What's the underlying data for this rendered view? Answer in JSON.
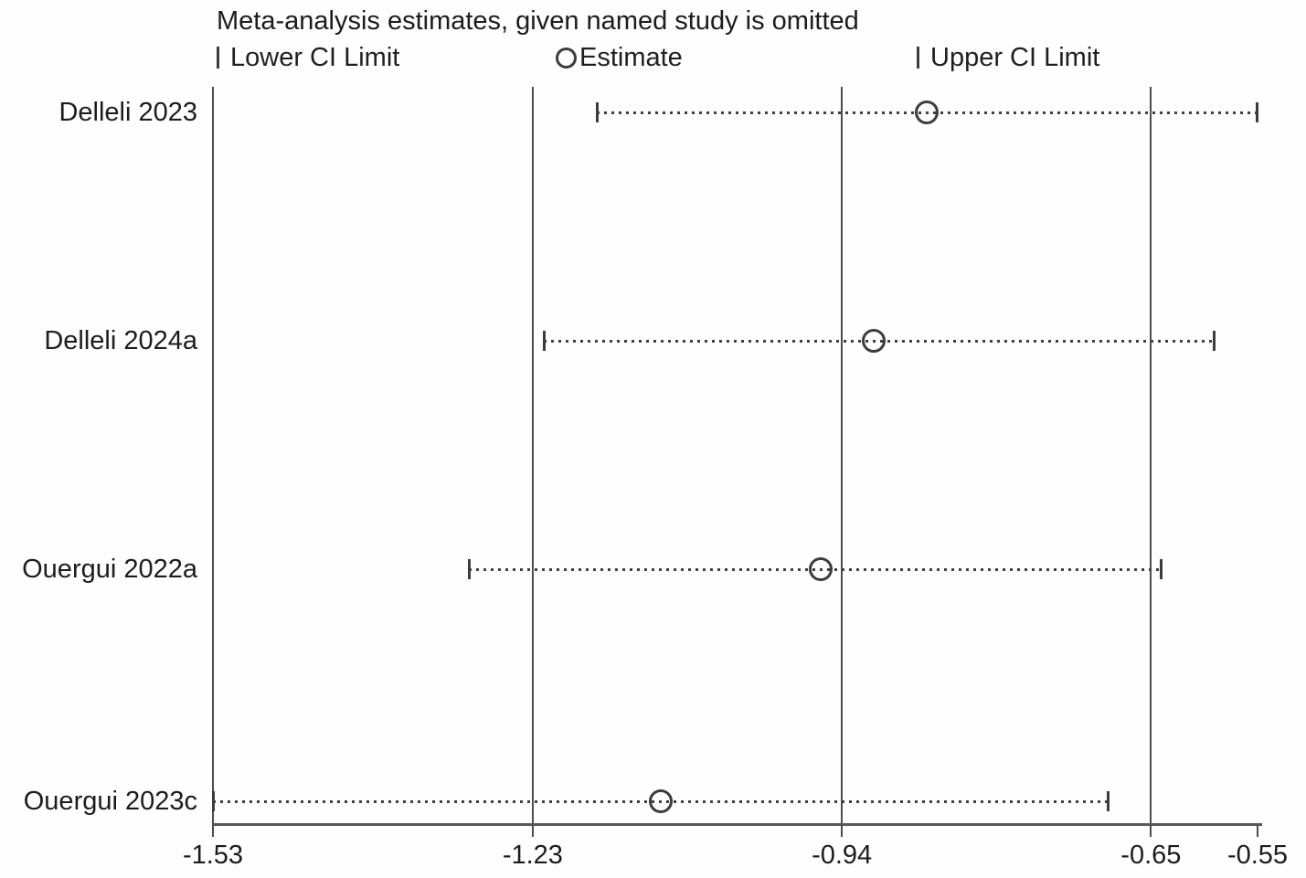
{
  "title": "Meta-analysis estimates, given named study is omitted",
  "legend": {
    "lower_label": "Lower CI Limit",
    "estimate_label": "Estimate",
    "upper_label": "Upper CI Limit"
  },
  "chart_data": {
    "type": "scatter",
    "subtype": "leave-one-out-sensitivity-forest-plot",
    "title": "Meta-analysis estimates, given named study is omitted",
    "xlabel": "",
    "ylabel": "",
    "xlim": [
      -1.53,
      -0.55
    ],
    "x_ticks": [
      -1.53,
      -1.23,
      -0.94,
      -0.65,
      -0.55
    ],
    "reference_lines": [
      -1.23,
      -0.94,
      -0.65
    ],
    "grid": "vertical reference lines only",
    "legend_entries": [
      "Lower CI Limit",
      "Estimate",
      "Upper CI Limit"
    ],
    "studies": [
      {
        "label": "Delleli 2023",
        "lower": -1.17,
        "estimate": -0.86,
        "upper": -0.55
      },
      {
        "label": "Delleli 2024a",
        "lower": -1.22,
        "estimate": -0.91,
        "upper": -0.59
      },
      {
        "label": "Ouergui 2022a",
        "lower": -1.29,
        "estimate": -0.96,
        "upper": -0.64
      },
      {
        "label": "Ouergui 2023c",
        "lower": -1.53,
        "estimate": -1.11,
        "upper": -0.69
      }
    ]
  }
}
